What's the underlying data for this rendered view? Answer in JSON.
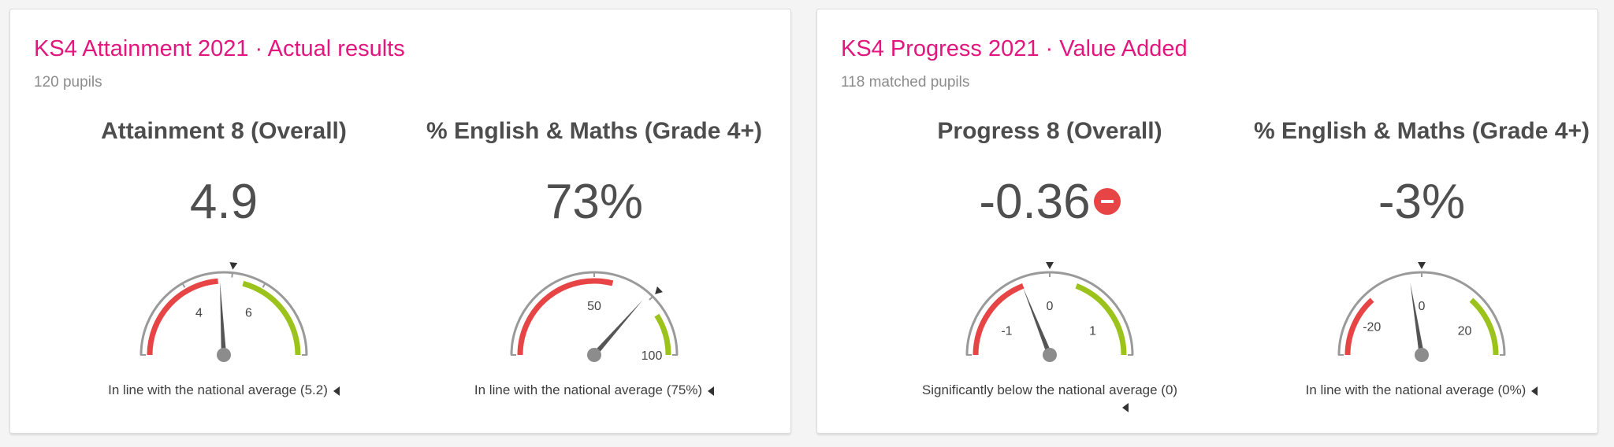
{
  "colors": {
    "accent": "#e2167f",
    "below": "#e74545",
    "above": "#9cc31b",
    "arc": "#9a9a9a",
    "needle": "#555555",
    "hub": "#8c8c8c"
  },
  "cards": [
    {
      "title": "KS4 Attainment 2021 · Actual results",
      "subtitle": "120 pupils",
      "metrics": [
        {
          "title": "Attainment 8 (Overall)",
          "value": "4.9",
          "caption": "In line with the national average (5.2)",
          "caption_icon": "left-caret-icon",
          "gauge": {
            "min": 2,
            "max": 8,
            "value": 4.9,
            "marker": 5.2,
            "below_band": [
              2,
              4.85
            ],
            "above_band": [
              5.5,
              8
            ],
            "labels": [
              {
                "text": "4",
                "at": 4
              },
              {
                "text": "6",
                "at": 6
              }
            ],
            "ticks": [
              2,
              4,
              5.2,
              6,
              8
            ]
          }
        },
        {
          "title": "% English & Maths (Grade 4+)",
          "value": "73%",
          "caption": "In line with the national average (75%)",
          "caption_icon": "left-caret-icon",
          "gauge": {
            "min": 0,
            "max": 100,
            "value": 73,
            "marker": 75,
            "below_band": [
              0,
              58
            ],
            "above_band": [
              82,
              100
            ],
            "labels": [
              {
                "text": "50",
                "at": 50
              },
              {
                "text": "100",
                "at": 100
              }
            ],
            "ticks": [
              0,
              50,
              75,
              100
            ]
          }
        }
      ]
    },
    {
      "title": "KS4 Progress 2021 · Value Added",
      "subtitle": "118 matched pupils",
      "metrics": [
        {
          "title": "Progress 8 (Overall)",
          "value": "-0.36",
          "badge": "minus-circle-icon",
          "caption": "Significantly below the national average (0)",
          "caption_icon": "left-caret-icon",
          "gauge": {
            "min": -1.5,
            "max": 1.5,
            "value": -0.36,
            "marker": 0,
            "below_band": [
              -1.5,
              -0.35
            ],
            "above_band": [
              0.35,
              1.5
            ],
            "labels": [
              {
                "text": "-1",
                "at": -1
              },
              {
                "text": "0",
                "at": 0
              },
              {
                "text": "1",
                "at": 1
              }
            ],
            "ticks": [
              -1.5,
              0,
              1.5
            ]
          }
        },
        {
          "title": "% English & Maths (Grade 4+)",
          "value": "-3%",
          "caption": "In line with the national average (0%)",
          "caption_icon": "left-caret-icon",
          "gauge": {
            "min": -30,
            "max": 30,
            "value": -3,
            "marker": 0,
            "below_band": [
              -30,
              -14
            ],
            "above_band": [
              14,
              30
            ],
            "labels": [
              {
                "text": "-20",
                "at": -20
              },
              {
                "text": "0",
                "at": 0
              },
              {
                "text": "20",
                "at": 20
              }
            ],
            "ticks": [
              -30,
              0,
              30
            ]
          }
        }
      ]
    }
  ]
}
